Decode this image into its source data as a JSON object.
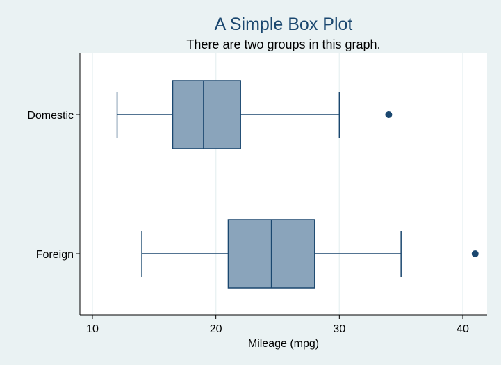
{
  "chart_data": {
    "type": "box",
    "title": "A Simple Box Plot",
    "subtitle": "There are two groups in this graph.",
    "xlabel": "Mileage (mpg)",
    "ylabel": "",
    "xlim": [
      9,
      42
    ],
    "xticks": [
      10,
      20,
      30,
      40
    ],
    "grid": true,
    "orientation": "horizontal",
    "groups": [
      {
        "name": "Domestic",
        "whisker_low": 12,
        "q1": 16.5,
        "median": 19,
        "q3": 22,
        "whisker_high": 30,
        "outliers": [
          34
        ]
      },
      {
        "name": "Foreign",
        "whisker_low": 14,
        "q1": 21,
        "median": 24.5,
        "q3": 28,
        "whisker_high": 35,
        "outliers": [
          41
        ]
      }
    ],
    "colors": {
      "background": "#eaf2f3",
      "plot_area": "#ffffff",
      "box_fill": "#8aa4bb",
      "box_stroke": "#1a476f",
      "grid": "#eaf2f3",
      "title": "#1a476f"
    }
  }
}
